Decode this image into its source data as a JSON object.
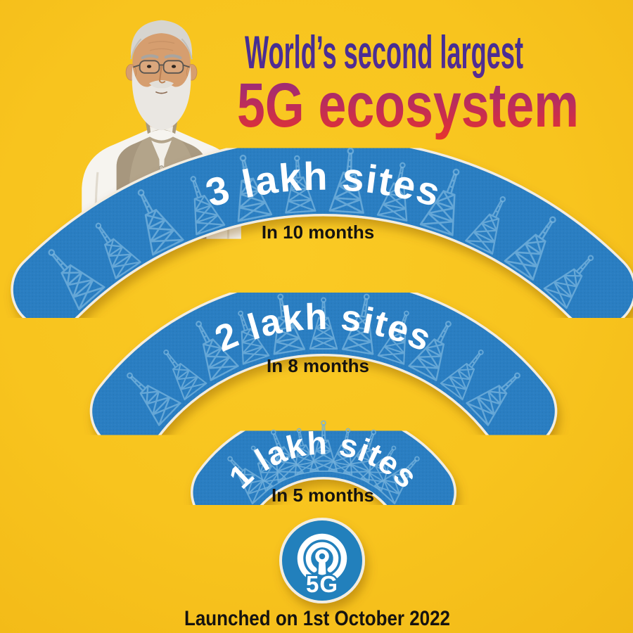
{
  "title": {
    "line1": "World’s second largest",
    "line2": "5G ecosystem"
  },
  "signal": {
    "arcs": [
      {
        "label": "3 lakh sites",
        "duration": "In 10 months"
      },
      {
        "label": "2 lakh sites",
        "duration": "In 8 months"
      },
      {
        "label": "1 lakh sites",
        "duration": "In 5 months"
      }
    ],
    "hub": {
      "label": "5G"
    }
  },
  "footer": {
    "caption": "Launched on 1st October 2022"
  },
  "colors": {
    "background": "#F8C41E",
    "arc_blue": "#2B7EC2",
    "sticker_edge": "#F2EDE1",
    "tower_outline": "#74B2DC",
    "title_line1_top": "#3A2F96",
    "title_line1_bottom": "#5A2C91",
    "title_line2_top": "#8A2B87",
    "title_line2_bottom": "#E8332C",
    "label_white": "#FFFFFF",
    "text_black": "#151310",
    "hub_blue": "#2480BC"
  },
  "icons": {
    "arc_pattern": "cell-tower-icon",
    "hub": "broadcast-antenna-icon"
  }
}
